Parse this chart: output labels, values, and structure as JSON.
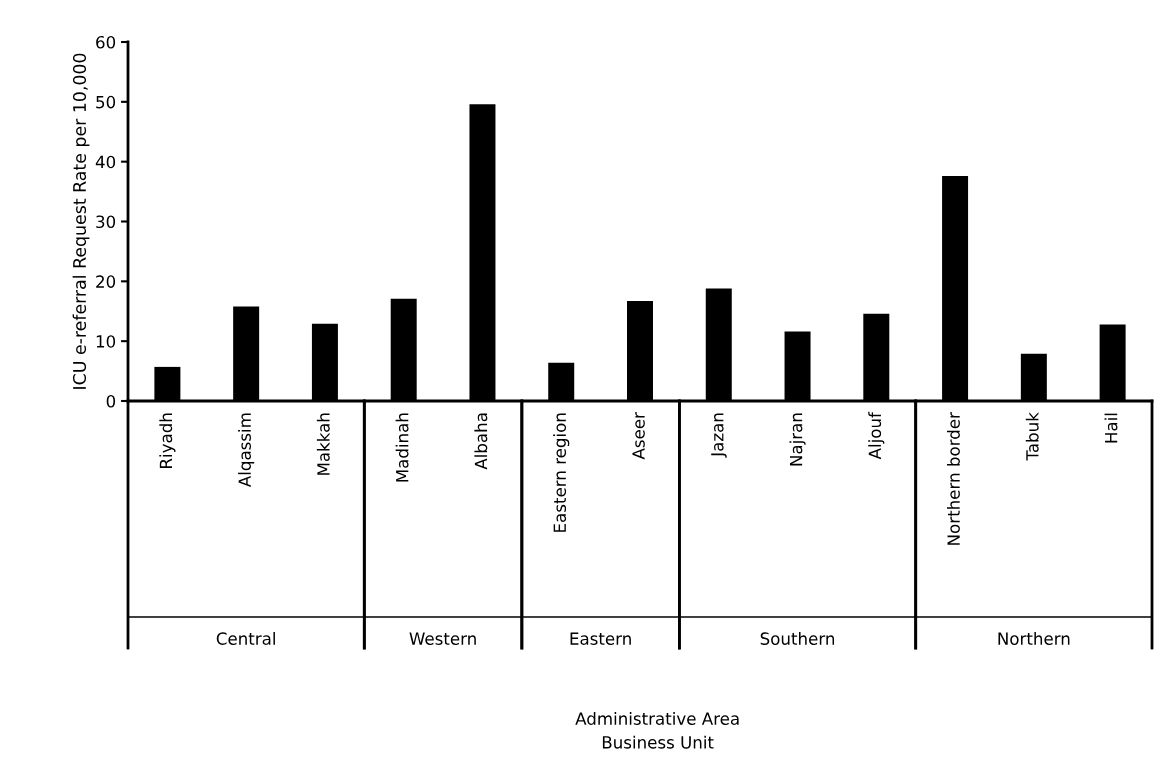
{
  "chart_data": {
    "type": "bar",
    "ylabel": "ICU e-referral Request Rate per 10,000",
    "categories": [
      "Riyadh",
      "Alqassim",
      "Makkah",
      "Madinah",
      "Albaha",
      "Eastern region",
      "Aseer",
      "Jazan",
      "Najran",
      "Aljouf",
      "Northern border",
      "Tabuk",
      "Hail"
    ],
    "values": [
      5.7,
      15.8,
      12.9,
      17.1,
      49.6,
      6.4,
      16.7,
      18.8,
      11.6,
      14.6,
      37.6,
      7.9,
      12.8
    ],
    "color": "#000000",
    "ylim": [
      0,
      60
    ],
    "yticks": [
      0,
      10,
      20,
      30,
      40,
      50,
      60
    ],
    "annotations": [
      "Central",
      "Western",
      "Eastern",
      "Southern",
      "Northern",
      "Administrative Area\nBusiness Unit"
    ]
  }
}
